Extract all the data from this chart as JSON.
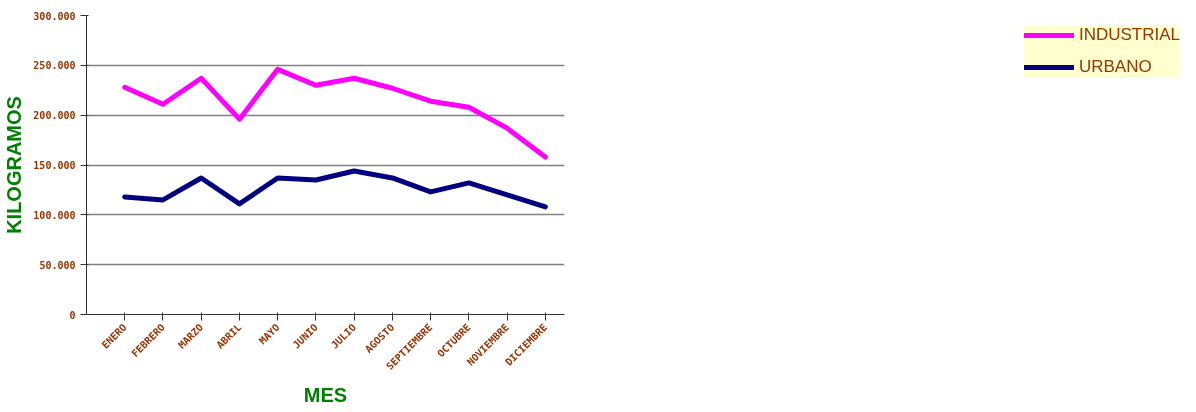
{
  "chart_data": {
    "type": "line",
    "xlabel": "MES",
    "ylabel": "KILOGRAMOS",
    "categories": [
      "ENERO",
      "FEBRERO",
      "MARZO",
      "ABRIL",
      "MAYO",
      "JUNIO",
      "JULIO",
      "AGOSTO",
      "SEPTIEMBRE",
      "OCTUBRE",
      "NOVIEMBRE",
      "DICIEMBRE"
    ],
    "series": [
      {
        "name": "INDUSTRIAL",
        "color": "#ff00ff",
        "values": [
          228000,
          211000,
          237000,
          196000,
          246000,
          230000,
          237000,
          227000,
          214000,
          208000,
          187000,
          158000
        ]
      },
      {
        "name": "URBANO",
        "color": "#000080",
        "values": [
          118000,
          115000,
          137000,
          111000,
          137000,
          135000,
          144000,
          137000,
          123000,
          132000,
          120000,
          108000
        ]
      }
    ],
    "ylim": [
      0,
      300000
    ],
    "yticks": [
      0,
      {
        "value": 50000,
        "label": "50.000"
      },
      {
        "value": 100000,
        "label": "100.000"
      },
      {
        "value": 150000,
        "label": "150.000"
      },
      {
        "value": 200000,
        "label": "200.000"
      },
      {
        "value": 250000,
        "label": "250.000"
      },
      {
        "value": 300000,
        "label": "300.000"
      }
    ],
    "grid": "y",
    "legend": "right",
    "marker": "none",
    "line_style": "solid"
  }
}
